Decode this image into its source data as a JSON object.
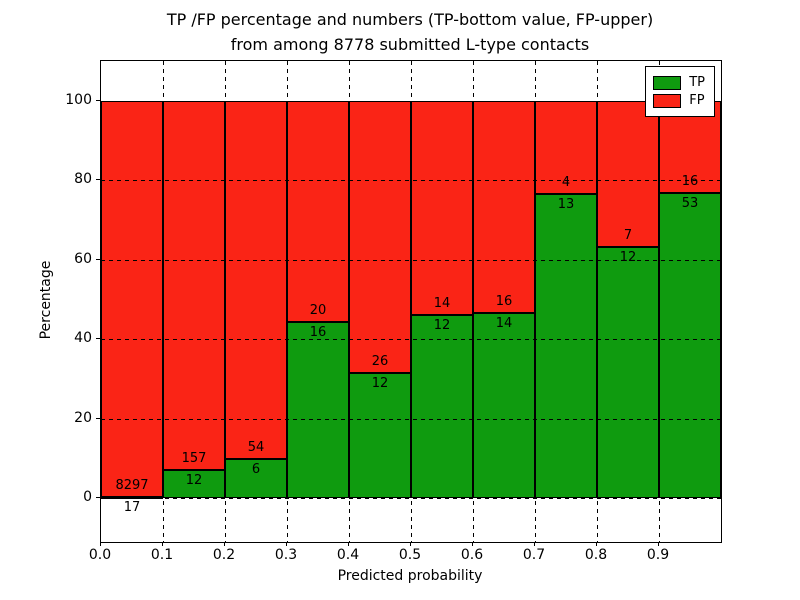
{
  "chart_data": {
    "type": "bar",
    "stacked": true,
    "normalized_to_percent": true,
    "title_line1": "TP /FP percentage and numbers (TP-bottom value, FP-upper)",
    "title_line2": "from among 8778 submitted L-type contacts",
    "xlabel": "Predicted probability",
    "ylabel": "Percentage",
    "xticks": [
      "0.0",
      "0.1",
      "0.2",
      "0.3",
      "0.4",
      "0.5",
      "0.6",
      "0.7",
      "0.8",
      "0.9"
    ],
    "yticks": [
      0,
      20,
      40,
      60,
      80,
      100
    ],
    "xlim": [
      0.0,
      1.0
    ],
    "ylim": [
      -11,
      110
    ],
    "bin_width": 0.1,
    "grid": true,
    "legend_position": "upper right",
    "series": [
      {
        "name": "TP",
        "color": "#0f9b0f",
        "counts": [
          17,
          12,
          6,
          16,
          12,
          12,
          14,
          13,
          12,
          53
        ]
      },
      {
        "name": "FP",
        "color": "#fa2416",
        "counts": [
          8297,
          157,
          54,
          20,
          26,
          14,
          16,
          4,
          7,
          16
        ]
      }
    ],
    "tp_percent_by_bin": [
      0.2,
      7.1,
      10.0,
      44.4,
      31.6,
      46.2,
      46.7,
      76.5,
      63.2,
      76.8
    ],
    "label_note": "FP count printed above stack boundary, TP count printed below stack boundary"
  }
}
